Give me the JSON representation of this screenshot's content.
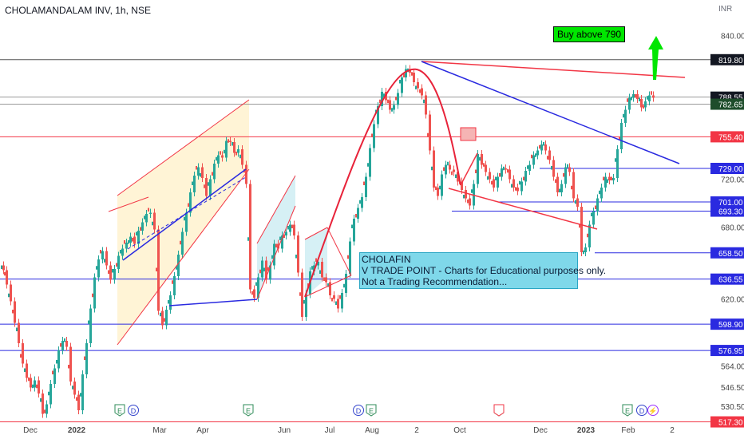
{
  "header": {
    "symbol": "CHOLAMANDALAM INV, 1h, NSE"
  },
  "price_unit": "INR",
  "note": {
    "lines": [
      "CHOLAFIN",
      "V TRADE POINT - Charts for Educational purposes only.",
      "Not a Trading Recommendation..."
    ]
  },
  "buy_label": "Buy above 790",
  "colors": {
    "up": "#26a69a",
    "down": "#ef5350",
    "red_line": "#f23645",
    "blue_line": "#2a2ae0",
    "gray_line": "#9a9a9a",
    "dark_line": "#555555",
    "channel_fill": "#fff4d6",
    "flag_fill": "#d6f0f5",
    "note_bg": "#7fd8ea",
    "buy_bg": "#00e600",
    "arrow": "#00e600"
  },
  "chart_data": {
    "type": "line",
    "title": "CHOLAMANDALAM INV, 1h, NSE",
    "ylabel": "INR",
    "ylim": [
      515,
      868
    ],
    "x_ticks": [
      "Dec",
      "2022",
      "Mar",
      "Apr",
      "Jun",
      "Jul",
      "Aug",
      "2",
      "Oct",
      "Dec",
      "2023",
      "Feb",
      "2"
    ],
    "y_ticks": [
      530.5,
      546.5,
      564.0,
      620.0,
      680.0,
      720.0,
      840.0
    ],
    "price_labels": [
      {
        "value": "819.80",
        "style": "dark"
      },
      {
        "value": "788.55",
        "style": "dark"
      },
      {
        "value": "782.65",
        "style": "darkgreen"
      },
      {
        "value": "755.40",
        "style": "red"
      },
      {
        "value": "729.00",
        "style": "blue"
      },
      {
        "value": "701.00",
        "style": "blue"
      },
      {
        "value": "693.30",
        "style": "blue"
      },
      {
        "value": "658.50",
        "style": "blue"
      },
      {
        "value": "636.55",
        "style": "blue"
      },
      {
        "value": "598.90",
        "style": "blue"
      },
      {
        "value": "576.95",
        "style": "blue"
      },
      {
        "value": "517.30",
        "style": "red"
      }
    ],
    "events": [
      "E",
      "D",
      "E",
      "D",
      "E",
      "E",
      "E",
      "D",
      "⚡"
    ],
    "series": [
      {
        "x": [
          0,
          4,
          8,
          13,
          18,
          23,
          28,
          33,
          38,
          43,
          48,
          53,
          58,
          63,
          68,
          73,
          78,
          83,
          88,
          93,
          98,
          103,
          108,
          113,
          118,
          123,
          128,
          133,
          138,
          143,
          148,
          153,
          158,
          163,
          168,
          173,
          178,
          183,
          188,
          193,
          198,
          203,
          208,
          213,
          218,
          223,
          228,
          233,
          238,
          243,
          248,
          253,
          258,
          263,
          268,
          273,
          278,
          283,
          288,
          293,
          298,
          303,
          308,
          313,
          318,
          323,
          328,
          333,
          338,
          343,
          348,
          353,
          358,
          363,
          368,
          373,
          378,
          383,
          388,
          393,
          398,
          403,
          408,
          413,
          418,
          423,
          428,
          433,
          438,
          443,
          448,
          453,
          458,
          463,
          468,
          473,
          478,
          483,
          488,
          493,
          498,
          503,
          508,
          513,
          518,
          523,
          528,
          533,
          538,
          543,
          548,
          553,
          558,
          563,
          568,
          573,
          578,
          583,
          588,
          593,
          598,
          603,
          608,
          613,
          618,
          623,
          628,
          633,
          638,
          643,
          648,
          653,
          658,
          663,
          668,
          673,
          678,
          683,
          688,
          693,
          698,
          703,
          708,
          713,
          718,
          723,
          728,
          733,
          738,
          743,
          748,
          753,
          758,
          763,
          768,
          773,
          778,
          783,
          788,
          793,
          798,
          803,
          808,
          813,
          818
        ],
        "values": [
          648,
          644,
          632,
          618,
          600,
          583,
          566,
          554,
          546,
          552,
          541,
          524,
          532,
          549,
          562,
          577,
          585,
          580,
          551,
          540,
          527,
          557,
          583,
          612,
          638,
          653,
          660,
          648,
          636,
          645,
          656,
          662,
          667,
          672,
          666,
          677,
          684,
          691,
          692,
          678,
          610,
          598,
          611,
          623,
          639,
          657,
          676,
          692,
          709,
          723,
          730,
          721,
          706,
          720,
          733,
          740,
          738,
          752,
          751,
          742,
          745,
          732,
          716,
          628,
          621,
          638,
          652,
          636,
          648,
          666,
          662,
          673,
          676,
          682,
          673,
          642,
          605,
          624,
          643,
          648,
          651,
          638,
          634,
          623,
          620,
          612,
          625,
          641,
          668,
          687,
          696,
          705,
          722,
          746,
          766,
          781,
          793,
          786,
          778,
          782,
          792,
          805,
          812,
          809,
          801,
          796,
          790,
          774,
          744,
          713,
          706,
          724,
          732,
          728,
          726,
          718,
          711,
          704,
          698,
          716,
          741,
          732,
          726,
          720,
          713,
          722,
          729,
          728,
          720,
          713,
          710,
          718,
          727,
          732,
          740,
          744,
          749,
          744,
          736,
          722,
          709,
          716,
          730,
          726,
          704,
          697,
          659,
          663,
          682,
          693,
          704,
          713,
          722,
          719,
          721,
          745,
          767,
          778,
          788,
          791,
          787,
          780,
          785,
          790,
          788
        ]
      }
    ]
  }
}
